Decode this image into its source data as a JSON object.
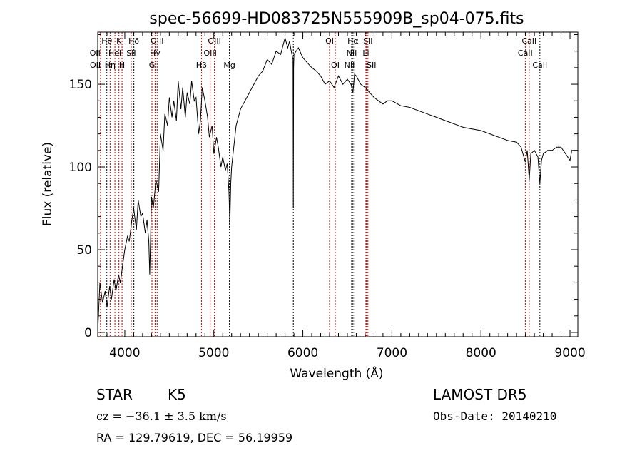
{
  "chart_data": {
    "type": "line",
    "title": "spec-56699-HD083725N555909B_sp04-075.fits",
    "xlabel": "Wavelength (Å)",
    "ylabel": "Flux (relative)",
    "xlim": [
      3696,
      9088
    ],
    "ylim": [
      -2.6,
      181.5
    ],
    "xticks": [
      4000,
      5000,
      6000,
      7000,
      8000,
      9000
    ],
    "yticks": [
      0,
      50,
      100,
      150
    ],
    "grid": false,
    "series": [
      {
        "name": "spectrum",
        "x": [
          3700,
          3720,
          3750,
          3780,
          3800,
          3830,
          3850,
          3880,
          3900,
          3930,
          3950,
          3980,
          4000,
          4030,
          4050,
          4080,
          4100,
          4130,
          4150,
          4180,
          4200,
          4230,
          4250,
          4270,
          4280,
          4300,
          4320,
          4350,
          4380,
          4400,
          4430,
          4450,
          4480,
          4500,
          4530,
          4550,
          4580,
          4600,
          4630,
          4650,
          4680,
          4700,
          4730,
          4750,
          4780,
          4800,
          4830,
          4850,
          4870,
          4900,
          4930,
          4950,
          4980,
          5000,
          5030,
          5050,
          5080,
          5100,
          5130,
          5150,
          5170,
          5180,
          5190,
          5200,
          5250,
          5300,
          5350,
          5400,
          5450,
          5500,
          5550,
          5600,
          5650,
          5700,
          5750,
          5800,
          5830,
          5850,
          5870,
          5890,
          5893,
          5896,
          5900,
          5950,
          6000,
          6050,
          6100,
          6150,
          6200,
          6250,
          6300,
          6350,
          6400,
          6450,
          6500,
          6540,
          6563,
          6580,
          6600,
          6650,
          6700,
          6750,
          6800,
          6850,
          6900,
          6950,
          7000,
          7100,
          7200,
          7300,
          7400,
          7500,
          7600,
          7700,
          7800,
          7900,
          8000,
          8100,
          8200,
          8300,
          8400,
          8450,
          8498,
          8520,
          8542,
          8560,
          8600,
          8640,
          8662,
          8680,
          8700,
          8750,
          8800,
          8850,
          8900,
          8950,
          9000,
          9020,
          9040,
          9060,
          9088
        ],
        "y": [
          5,
          30,
          18,
          25,
          15,
          28,
          20,
          32,
          25,
          35,
          30,
          42,
          50,
          58,
          55,
          68,
          75,
          62,
          80,
          70,
          72,
          60,
          68,
          55,
          35,
          82,
          75,
          92,
          85,
          120,
          110,
          132,
          125,
          142,
          130,
          140,
          128,
          152,
          135,
          148,
          130,
          145,
          138,
          152,
          140,
          142,
          120,
          128,
          148,
          140,
          130,
          118,
          125,
          108,
          118,
          112,
          100,
          106,
          98,
          102,
          85,
          65,
          90,
          100,
          125,
          135,
          140,
          145,
          150,
          155,
          158,
          165,
          162,
          170,
          168,
          178,
          172,
          176,
          170,
          165,
          75,
          160,
          168,
          172,
          166,
          163,
          160,
          158,
          155,
          150,
          152,
          148,
          155,
          150,
          153,
          150,
          145,
          156,
          155,
          150,
          148,
          145,
          142,
          140,
          138,
          140,
          140,
          137,
          136,
          134,
          132,
          130,
          128,
          126,
          124,
          123,
          122,
          120,
          118,
          116,
          115,
          112,
          103,
          110,
          92,
          108,
          110,
          106,
          90,
          104,
          108,
          110,
          110,
          112,
          112,
          108,
          104,
          110,
          110,
          110,
          110
        ]
      }
    ],
    "line_markers": [
      {
        "label": "Hθ",
        "wavelength": 3798,
        "color": "#000000"
      },
      {
        "label": "OII",
        "wavelength": 3727,
        "color": "#c00000"
      },
      {
        "label": "OII",
        "wavelength": 3729,
        "color": "#c00000"
      },
      {
        "label": "Hη",
        "wavelength": 3835,
        "color": "#c00000"
      },
      {
        "label": "HeI",
        "wavelength": 3889,
        "color": "#c00000"
      },
      {
        "label": "K",
        "wavelength": 3934,
        "color": "#c00000"
      },
      {
        "label": "H",
        "wavelength": 3969,
        "color": "#c00000"
      },
      {
        "label": "SII",
        "wavelength": 4072,
        "color": "#c00000"
      },
      {
        "label": "Hδ",
        "wavelength": 4102,
        "color": "#000000"
      },
      {
        "label": "G",
        "wavelength": 4305,
        "color": "#c00000"
      },
      {
        "label": "Hγ",
        "wavelength": 4340,
        "color": "#c00000"
      },
      {
        "label": "OIII",
        "wavelength": 4363,
        "color": "#c00000"
      },
      {
        "label": "Hβ",
        "wavelength": 4861,
        "color": "#c00000"
      },
      {
        "label": "OIII",
        "wavelength": 4959,
        "color": "#c00000"
      },
      {
        "label": "OIII",
        "wavelength": 5007,
        "color": "#c00000"
      },
      {
        "label": "Mg",
        "wavelength": 5175,
        "color": "#000000"
      },
      {
        "label": "",
        "wavelength": 5893,
        "color": "#000000"
      },
      {
        "label": "OI",
        "wavelength": 6300,
        "color": "#c00000"
      },
      {
        "label": "OI",
        "wavelength": 6364,
        "color": "#c00000"
      },
      {
        "label": "NII",
        "wavelength": 6548,
        "color": "#000000"
      },
      {
        "label": "Hα",
        "wavelength": 6563,
        "color": "#000000"
      },
      {
        "label": "NII",
        "wavelength": 6583,
        "color": "#000000"
      },
      {
        "label": "Li",
        "wavelength": 6708,
        "color": "#c00000"
      },
      {
        "label": "SII",
        "wavelength": 6717,
        "color": "#c00000"
      },
      {
        "label": "SII",
        "wavelength": 6731,
        "color": "#c00000"
      },
      {
        "label": "CaII",
        "wavelength": 8498,
        "color": "#c00000"
      },
      {
        "label": "CaII",
        "wavelength": 8542,
        "color": "#c00000"
      },
      {
        "label": "CaII",
        "wavelength": 8662,
        "color": "#000000"
      }
    ]
  },
  "info": {
    "object_class": "STAR",
    "subclass": "K5",
    "survey": "LAMOST DR5",
    "cz": "cz = −36.1 ± 3.5 km/s",
    "obs_date": "Obs-Date: 20140210",
    "coords": "RA = 129.79619, DEC =  56.19959"
  }
}
